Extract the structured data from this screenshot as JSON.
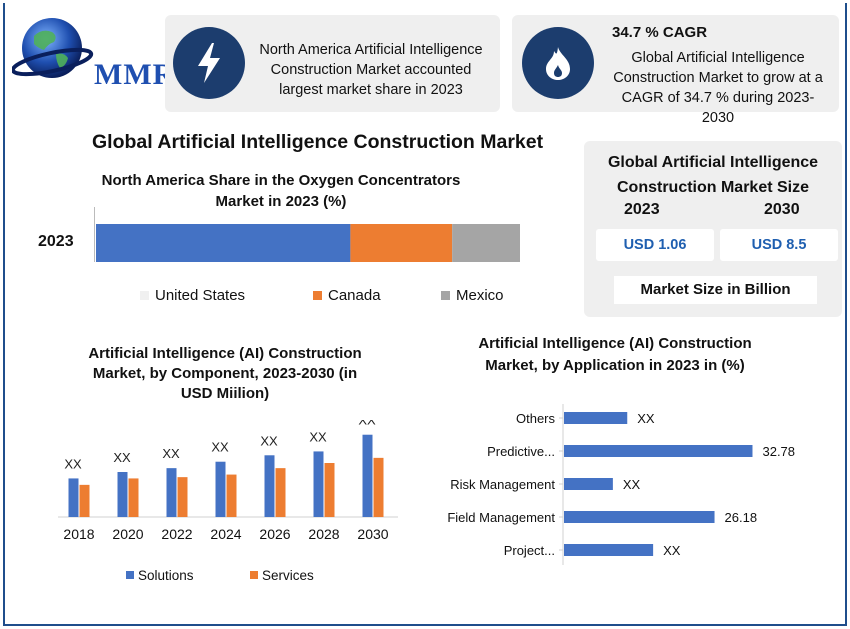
{
  "brand": {
    "name": "MMR"
  },
  "colors": {
    "blue": "#4472c4",
    "orange": "#ed7d31",
    "gray": "#a5a5a5",
    "navy": "#1c3d6e",
    "value_blue": "#1f5fb0"
  },
  "highlights": [
    {
      "icon": "lightning-icon",
      "text_lines": [
        "North America Artificial Intelligence",
        "Construction Market accounted",
        "largest market share in 2023"
      ]
    },
    {
      "icon": "flame-icon",
      "title": "34.7 % CAGR",
      "text_lines": [
        "Global Artificial Intelligence",
        "Construction Market to grow at a",
        "CAGR of 34.7 % during 2023-",
        "2030"
      ]
    }
  ],
  "main_title": "Global Artificial Intelligence Construction Market",
  "market_size": {
    "title_lines": [
      "Global Artificial Intelligence",
      "Construction Market Size"
    ],
    "years": [
      "2023",
      "2030"
    ],
    "values": [
      "USD 1.06",
      "USD 8.5"
    ],
    "note": "Market Size in Billion"
  },
  "chart_data": [
    {
      "type": "bar",
      "orientation": "horizontal-stacked",
      "title_lines": [
        "North America Share in the Oxygen Concentrators",
        "Market in 2023 (%)"
      ],
      "categories": [
        "2023"
      ],
      "series": [
        {
          "name": "United States",
          "values": [
            60
          ],
          "color": "#4472c4"
        },
        {
          "name": "Canada",
          "values": [
            24
          ],
          "color": "#ed7d31"
        },
        {
          "name": "Mexico",
          "values": [
            16
          ],
          "color": "#a5a5a5"
        }
      ],
      "legend": "bottom"
    },
    {
      "type": "bar",
      "title_lines": [
        "Artificial Intelligence (AI) Construction",
        "Market, by Component, 2023-2030 (in",
        "USD Miilion)"
      ],
      "categories": [
        "2018",
        "2020",
        "2022",
        "2024",
        "2026",
        "2028",
        "2030"
      ],
      "series": [
        {
          "name": "Solutions",
          "values": [
            30,
            35,
            38,
            43,
            48,
            51,
            64
          ],
          "color": "#4472c4"
        },
        {
          "name": "Services",
          "values": [
            25,
            30,
            31,
            33,
            38,
            42,
            46
          ],
          "color": "#ed7d31"
        }
      ],
      "data_labels": [
        "XX",
        "XX",
        "XX",
        "XX",
        "XX",
        "XX",
        "XX"
      ],
      "ylim": [
        0,
        70
      ],
      "legend": "bottom"
    },
    {
      "type": "bar",
      "orientation": "horizontal",
      "title_lines": [
        "Artificial Intelligence (AI) Construction",
        "Market, by Application in 2023 in (%)"
      ],
      "categories": [
        "Others",
        "Predictive...",
        "Risk Management",
        "Field Management",
        "Project..."
      ],
      "values": [
        11,
        32.78,
        8.5,
        26.18,
        15.5
      ],
      "data_labels": [
        "XX",
        "32.78",
        "XX",
        "26.18",
        "XX"
      ],
      "color": "#4472c4",
      "xlim": [
        0,
        40
      ]
    }
  ]
}
